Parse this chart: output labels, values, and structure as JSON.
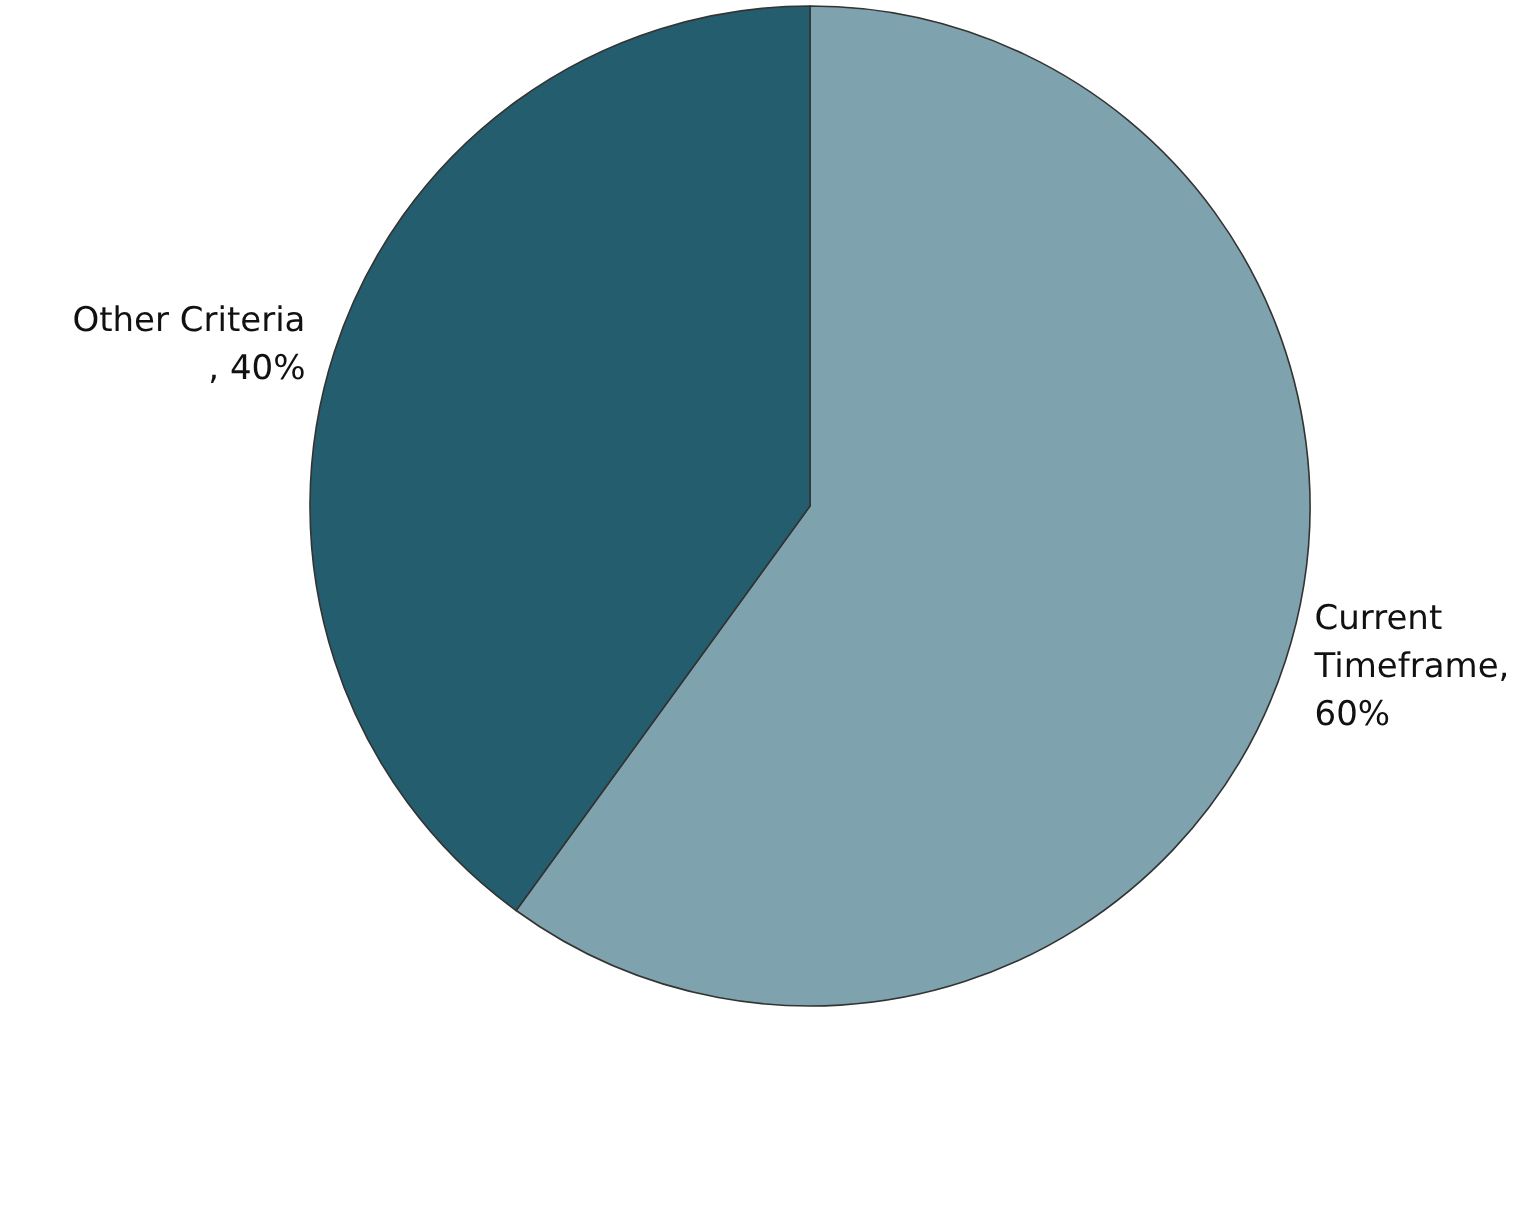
{
  "chart_data": {
    "type": "pie",
    "categories": [
      "Current Timeframe, 60%",
      "Other Criteria, 40%"
    ],
    "values": [
      60,
      40
    ],
    "colors": [
      "#7fa3ae",
      "#245e6e"
    ],
    "legend": false
  }
}
